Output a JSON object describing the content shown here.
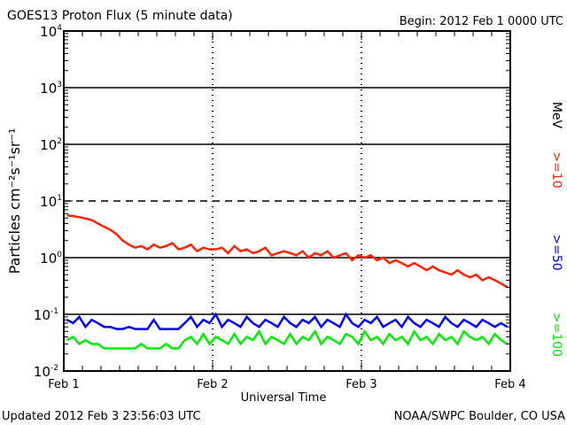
{
  "chart_data": {
    "type": "line",
    "title": "GOES13 Proton Flux (5 minute data)",
    "begin_label": "Begin: 2012 Feb 1 0000 UTC",
    "xlabel": "Universal Time",
    "ylabel": "Particles cm⁻²s⁻¹sr⁻¹",
    "x_ticks": [
      "Feb 1",
      "Feb 2",
      "Feb 3",
      "Feb 4"
    ],
    "x_unit": "hours since 2012 Feb 1 0000 UTC",
    "xlim": [
      0,
      72
    ],
    "y_scale": "log",
    "ylim": [
      0.01,
      10000
    ],
    "y_ticks": [
      {
        "base": "10",
        "exp": "4"
      },
      {
        "base": "10",
        "exp": "3"
      },
      {
        "base": "10",
        "exp": "2"
      },
      {
        "base": "10",
        "exp": "1"
      },
      {
        "base": "10",
        "exp": "0"
      },
      {
        "base": "10",
        "exp": "-1"
      },
      {
        "base": "10",
        "exp": "-2"
      }
    ],
    "energy_unit": "MeV",
    "series": [
      {
        "name": ">=10",
        "color": "#ff2200",
        "values": [
          5.6,
          5.4,
          5.2,
          4.9,
          4.6,
          4.0,
          3.5,
          3.1,
          2.6,
          2.0,
          1.7,
          1.5,
          1.6,
          1.4,
          1.7,
          1.5,
          1.6,
          1.8,
          1.4,
          1.5,
          1.7,
          1.3,
          1.5,
          1.4,
          1.4,
          1.5,
          1.2,
          1.6,
          1.3,
          1.4,
          1.2,
          1.3,
          1.5,
          1.1,
          1.2,
          1.3,
          1.2,
          1.1,
          1.3,
          1.0,
          1.2,
          1.1,
          1.3,
          1.0,
          1.1,
          1.2,
          0.9,
          1.1,
          1.0,
          1.1,
          0.9,
          1.0,
          0.8,
          0.9,
          0.8,
          0.7,
          0.8,
          0.7,
          0.6,
          0.7,
          0.6,
          0.55,
          0.5,
          0.6,
          0.5,
          0.45,
          0.5,
          0.4,
          0.45,
          0.4,
          0.35,
          0.3
        ]
      },
      {
        "name": ">=50",
        "color": "#0000ff",
        "values": [
          0.08,
          0.07,
          0.09,
          0.06,
          0.08,
          0.07,
          0.06,
          0.06,
          0.055,
          0.055,
          0.06,
          0.055,
          0.055,
          0.055,
          0.08,
          0.055,
          0.055,
          0.055,
          0.055,
          0.07,
          0.09,
          0.06,
          0.08,
          0.07,
          0.1,
          0.06,
          0.08,
          0.07,
          0.06,
          0.09,
          0.07,
          0.06,
          0.08,
          0.07,
          0.06,
          0.09,
          0.07,
          0.06,
          0.08,
          0.07,
          0.09,
          0.06,
          0.08,
          0.07,
          0.06,
          0.1,
          0.07,
          0.06,
          0.08,
          0.07,
          0.09,
          0.06,
          0.07,
          0.08,
          0.06,
          0.09,
          0.07,
          0.06,
          0.08,
          0.07,
          0.06,
          0.09,
          0.07,
          0.06,
          0.08,
          0.07,
          0.06,
          0.08,
          0.07,
          0.06,
          0.07,
          0.06
        ]
      },
      {
        "name": ">=100",
        "color": "#00ee00",
        "values": [
          0.035,
          0.04,
          0.03,
          0.035,
          0.03,
          0.03,
          0.025,
          0.025,
          0.025,
          0.025,
          0.025,
          0.025,
          0.03,
          0.025,
          0.025,
          0.025,
          0.03,
          0.025,
          0.025,
          0.035,
          0.04,
          0.03,
          0.045,
          0.03,
          0.04,
          0.035,
          0.03,
          0.045,
          0.03,
          0.04,
          0.035,
          0.05,
          0.03,
          0.04,
          0.035,
          0.03,
          0.045,
          0.03,
          0.04,
          0.035,
          0.05,
          0.03,
          0.04,
          0.035,
          0.03,
          0.045,
          0.04,
          0.03,
          0.05,
          0.035,
          0.04,
          0.03,
          0.045,
          0.035,
          0.04,
          0.03,
          0.05,
          0.035,
          0.04,
          0.03,
          0.045,
          0.035,
          0.04,
          0.03,
          0.05,
          0.04,
          0.035,
          0.04,
          0.03,
          0.045,
          0.035,
          0.03
        ]
      }
    ],
    "grid": "horizontal lines at decades, dashed vertical day lines"
  },
  "footer": {
    "updated": "Updated 2012 Feb  3 23:56:03 UTC",
    "credit": "NOAA/SWPC Boulder, CO USA"
  }
}
